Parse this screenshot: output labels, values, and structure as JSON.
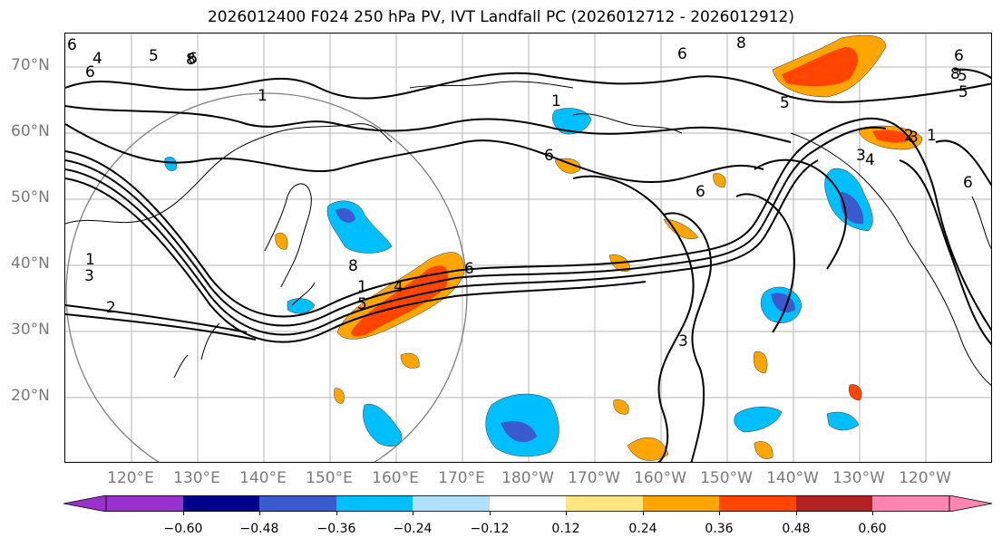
{
  "title": "2026012400 F024 250 hPa PV, IVT Landfall PC (2026012712 - 2026012912)",
  "lat_labels": [
    "70°N",
    "60°N",
    "50°N",
    "40°N",
    "30°N",
    "20°N"
  ],
  "lon_labels": [
    "120°E",
    "130°E",
    "140°E",
    "150°E",
    "160°E",
    "170°E",
    "180°W",
    "170°W",
    "160°W",
    "150°W",
    "140°W",
    "130°W",
    "120°W"
  ],
  "colorbar": {
    "ticks": [
      "−0.60",
      "−0.48",
      "−0.36",
      "−0.24",
      "−0.12",
      "0.12",
      "0.24",
      "0.36",
      "0.48",
      "0.60"
    ],
    "colors": [
      "#9932cc",
      "#00008b",
      "#3a5bcd",
      "#00bfff",
      "#b0e0ff",
      "#ffffff",
      "#ffe680",
      "#ffa500",
      "#ff4500",
      "#b22222",
      "#ff85b0"
    ]
  },
  "contour_labels": [
    "6",
    "4",
    "5",
    "1",
    "6",
    "8",
    "3",
    "6",
    "8",
    "5",
    "6",
    "6",
    "6",
    "6",
    "1",
    "2",
    "8",
    "5",
    "6",
    "1",
    "5",
    "3",
    "4",
    "1",
    "1",
    "3",
    "2",
    "8",
    "6",
    "5",
    "4",
    "3"
  ]
}
